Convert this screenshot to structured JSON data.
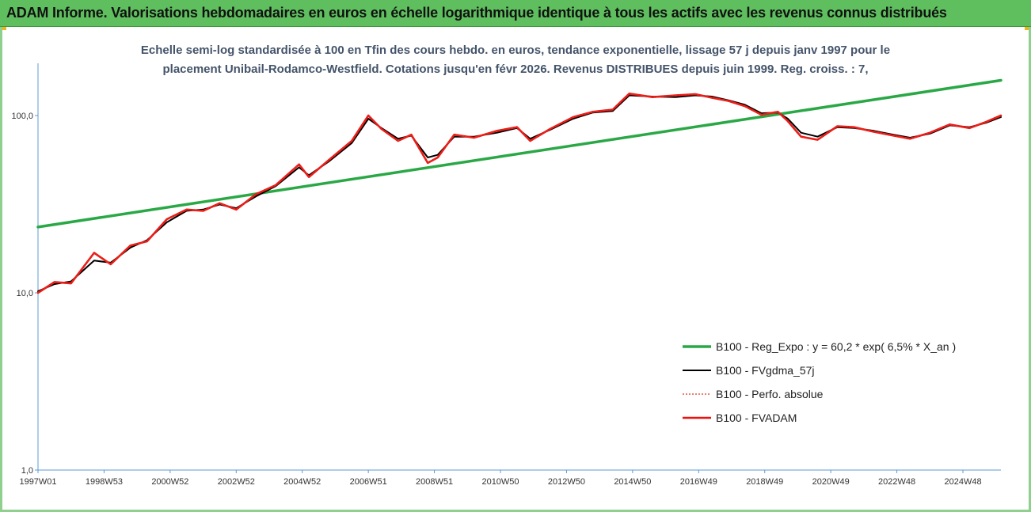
{
  "banner": {
    "title": "ADAM Informe. Valorisations hebdomadaires en euros en échelle logarithmique identique à tous les actifs avec les revenus connus distribués"
  },
  "colors": {
    "banner_bg": "#5fbf5f",
    "subtitle": "#44546a",
    "reg_expo": "#2aa846",
    "fvgdma": "#000000",
    "perfo": "#e03020",
    "fvadam": "#ee1111"
  },
  "chart_data": {
    "type": "line",
    "title_line1": "Echelle semi-log standardisée à 100 en Tfin des cours hebdo. en euros, tendance exponentielle, lissage 57 j depuis janv 1997 pour le",
    "title_line2": "placement Unibail-Rodamco-Westfield. Cotations jusqu'en févr 2026. Revenus DISTRIBUES depuis juin 1999. Reg. croiss. : 7,",
    "y_scale": "log",
    "ylim": [
      1,
      200
    ],
    "y_ticks": [
      "1,0",
      "10,0",
      "100,0"
    ],
    "y_tick_values": [
      1,
      10,
      100
    ],
    "xlim": [
      1997.0,
      2026.15
    ],
    "x_ticks": [
      "1997W01",
      "1998W53",
      "2000W52",
      "2002W52",
      "2004W52",
      "2006W51",
      "2008W51",
      "2010W50",
      "2012W50",
      "2014W50",
      "2016W49",
      "2018W49",
      "2020W49",
      "2022W48",
      "2024W48"
    ],
    "x_tick_years": [
      1997.0,
      1999.0,
      2001.0,
      2003.0,
      2005.0,
      2007.0,
      2009.0,
      2011.0,
      2013.0,
      2015.0,
      2017.0,
      2019.0,
      2021.0,
      2023.0,
      2025.0
    ],
    "legend_position": "bottom-right",
    "grid": false,
    "series": [
      {
        "name": "B100 - Reg_Expo : y = 60,2 * exp( 6,5% *  X_an )",
        "style": "thick-green",
        "x": [
          1997.0,
          2026.15
        ],
        "y": [
          23.5,
          158
        ]
      },
      {
        "name": "B100 - FVgdma_57j",
        "style": "thin-black",
        "x": [
          1997.0,
          1997.5,
          1998.0,
          1998.7,
          1999.2,
          1999.8,
          2000.3,
          2000.9,
          2001.5,
          2002.0,
          2002.5,
          2003.0,
          2003.6,
          2004.2,
          2004.9,
          2005.2,
          2005.8,
          2006.5,
          2007.0,
          2007.4,
          2007.9,
          2008.3,
          2008.8,
          2009.1,
          2009.6,
          2010.2,
          2010.9,
          2011.5,
          2011.9,
          2012.5,
          2013.2,
          2013.8,
          2014.4,
          2014.9,
          2015.6,
          2016.3,
          2016.9,
          2017.4,
          2017.9,
          2018.4,
          2018.9,
          2019.4,
          2019.7,
          2020.1,
          2020.6,
          2021.2,
          2021.7,
          2022.3,
          2022.9,
          2023.4,
          2024.0,
          2024.6,
          2025.2,
          2025.7,
          2026.15
        ],
        "y": [
          10.2,
          11.2,
          11.6,
          15.2,
          14.8,
          18.0,
          19.8,
          25.0,
          29.0,
          29.5,
          31.5,
          30.0,
          35.0,
          40.0,
          51.0,
          46.0,
          55.0,
          70.0,
          96.0,
          85.0,
          74.0,
          77.0,
          58.0,
          60.0,
          76.0,
          76.0,
          80.0,
          85.0,
          74.0,
          83.0,
          96.0,
          104.0,
          106.0,
          130.0,
          128.0,
          127.0,
          130.0,
          128.0,
          122.0,
          115.0,
          103.0,
          104.0,
          96.0,
          80.0,
          76.0,
          86.0,
          85.0,
          82.0,
          78.0,
          75.0,
          79.0,
          88.0,
          86.0,
          91.0,
          98.0
        ]
      },
      {
        "name": "B100 - Perfo. absolue",
        "style": "dotted-red",
        "x": [
          1997.0,
          1997.5,
          1998.0,
          1998.7,
          1999.2,
          1999.8,
          2000.3,
          2000.9,
          2001.5,
          2002.0,
          2002.5,
          2003.0,
          2003.6,
          2004.2,
          2004.9,
          2005.2,
          2005.8,
          2006.5,
          2007.0,
          2007.4,
          2007.9,
          2008.3,
          2008.8,
          2009.1,
          2009.6,
          2010.2,
          2010.9,
          2011.5,
          2011.9,
          2012.5,
          2013.2,
          2013.8,
          2014.4,
          2014.9,
          2015.6,
          2016.3,
          2016.9,
          2017.4,
          2017.9,
          2018.4,
          2018.9,
          2019.4,
          2019.7,
          2020.1,
          2020.6,
          2021.2,
          2021.7,
          2022.3,
          2022.9,
          2023.4,
          2024.0,
          2024.6,
          2025.2,
          2025.7,
          2026.15
        ],
        "y": [
          10.0,
          11.5,
          11.3,
          16.8,
          14.5,
          18.5,
          19.5,
          26.0,
          29.5,
          29.0,
          32.0,
          29.5,
          36.0,
          40.5,
          53.0,
          45.0,
          56.0,
          72.0,
          100.0,
          84.0,
          72.0,
          78.0,
          54.0,
          58.0,
          78.0,
          75.0,
          82.0,
          86.0,
          72.0,
          84.0,
          98.0,
          105.0,
          108.0,
          133.0,
          127.0,
          130.0,
          132.0,
          126.0,
          121.0,
          113.0,
          101.0,
          105.0,
          93.0,
          76.0,
          73.0,
          87.0,
          86.0,
          81.0,
          77.0,
          74.0,
          80.0,
          89.0,
          85.0,
          92.0,
          100.0
        ]
      },
      {
        "name": "B100 - FVADAM",
        "style": "thick-red",
        "x": [
          1997.0,
          1997.5,
          1998.0,
          1998.7,
          1999.2,
          1999.8,
          2000.3,
          2000.9,
          2001.5,
          2002.0,
          2002.5,
          2003.0,
          2003.6,
          2004.2,
          2004.9,
          2005.2,
          2005.8,
          2006.5,
          2007.0,
          2007.4,
          2007.9,
          2008.3,
          2008.8,
          2009.1,
          2009.6,
          2010.2,
          2010.9,
          2011.5,
          2011.9,
          2012.5,
          2013.2,
          2013.8,
          2014.4,
          2014.9,
          2015.6,
          2016.3,
          2016.9,
          2017.4,
          2017.9,
          2018.4,
          2018.9,
          2019.4,
          2019.7,
          2020.1,
          2020.6,
          2021.2,
          2021.7,
          2022.3,
          2022.9,
          2023.4,
          2024.0,
          2024.6,
          2025.2,
          2025.7,
          2026.15
        ],
        "y": [
          10.0,
          11.5,
          11.3,
          16.8,
          14.5,
          18.5,
          19.5,
          26.0,
          29.5,
          29.0,
          32.0,
          29.5,
          36.0,
          40.5,
          53.0,
          45.0,
          56.0,
          72.0,
          100.0,
          84.0,
          72.0,
          78.0,
          54.0,
          58.0,
          78.0,
          75.0,
          82.0,
          86.0,
          72.0,
          84.0,
          98.0,
          105.0,
          108.0,
          133.0,
          127.0,
          130.0,
          132.0,
          126.0,
          121.0,
          113.0,
          101.0,
          105.0,
          93.0,
          76.0,
          73.0,
          87.0,
          86.0,
          81.0,
          77.0,
          74.0,
          80.0,
          89.0,
          85.0,
          92.0,
          100.0
        ]
      }
    ]
  }
}
